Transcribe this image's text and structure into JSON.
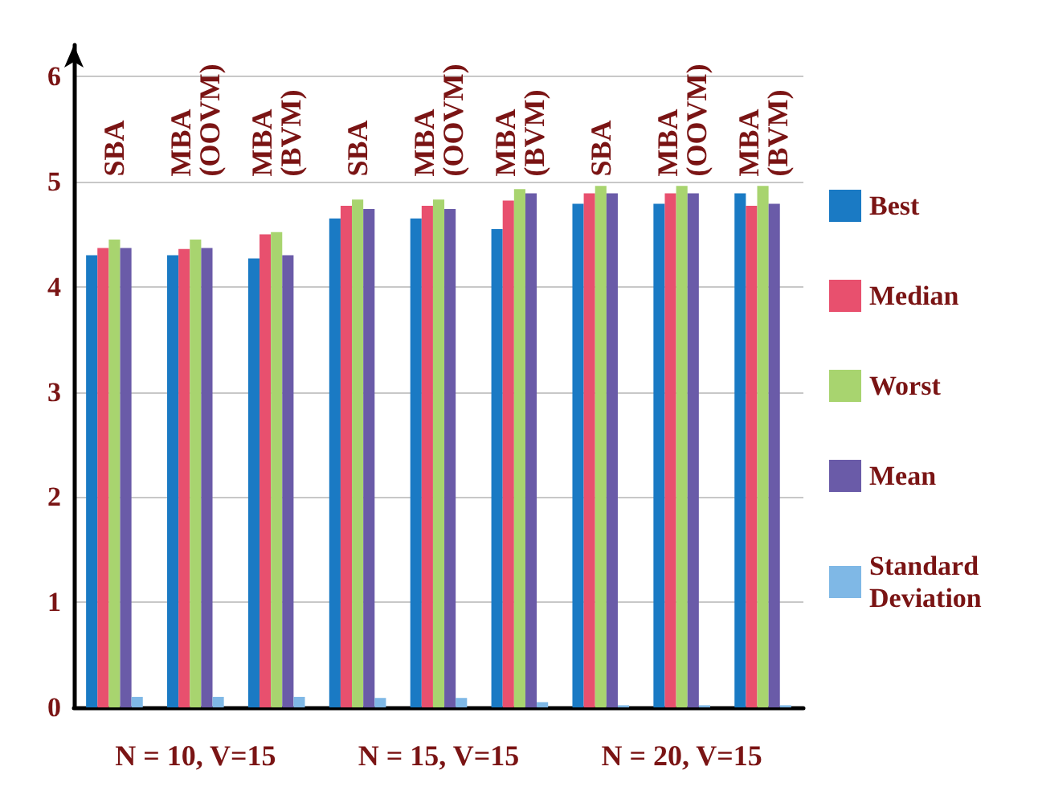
{
  "chart_data": {
    "type": "bar",
    "categories": [
      "SBA",
      "MBA (OOVM)",
      "MBA (BVM)",
      "SBA",
      "MBA (OOVM)",
      "MBA (BVM)",
      "SBA",
      "MBA (OOVM)",
      "MBA (BVM)"
    ],
    "series": [
      {
        "name": "Best",
        "color": "#1a7ac4",
        "values": [
          4.3,
          4.3,
          4.27,
          4.65,
          4.65,
          4.55,
          4.79,
          4.79,
          4.89
        ]
      },
      {
        "name": "Median",
        "color": "#e8506e",
        "values": [
          4.37,
          4.36,
          4.5,
          4.77,
          4.77,
          4.82,
          4.89,
          4.89,
          4.77
        ]
      },
      {
        "name": "Worst",
        "color": "#a8d46f",
        "values": [
          4.45,
          4.45,
          4.52,
          4.83,
          4.83,
          4.93,
          4.96,
          4.96,
          4.96
        ]
      },
      {
        "name": "Mean",
        "color": "#6a5ba8",
        "values": [
          4.37,
          4.37,
          4.3,
          4.74,
          4.74,
          4.89,
          4.89,
          4.89,
          4.79
        ]
      },
      {
        "name": "Standard Deviation",
        "color": "#7fb8e6",
        "values": [
          0.1,
          0.1,
          0.1,
          0.09,
          0.09,
          0.05,
          0.02,
          0.02,
          0.02
        ]
      }
    ],
    "ylim": [
      0,
      6.3
    ],
    "yticks": [
      0,
      1,
      2,
      3,
      4,
      5,
      6
    ],
    "grid": "y",
    "legend": "right",
    "annotations": [
      "N = 10, V=15",
      "N = 15, V=15",
      "N = 20, V=15"
    ]
  }
}
